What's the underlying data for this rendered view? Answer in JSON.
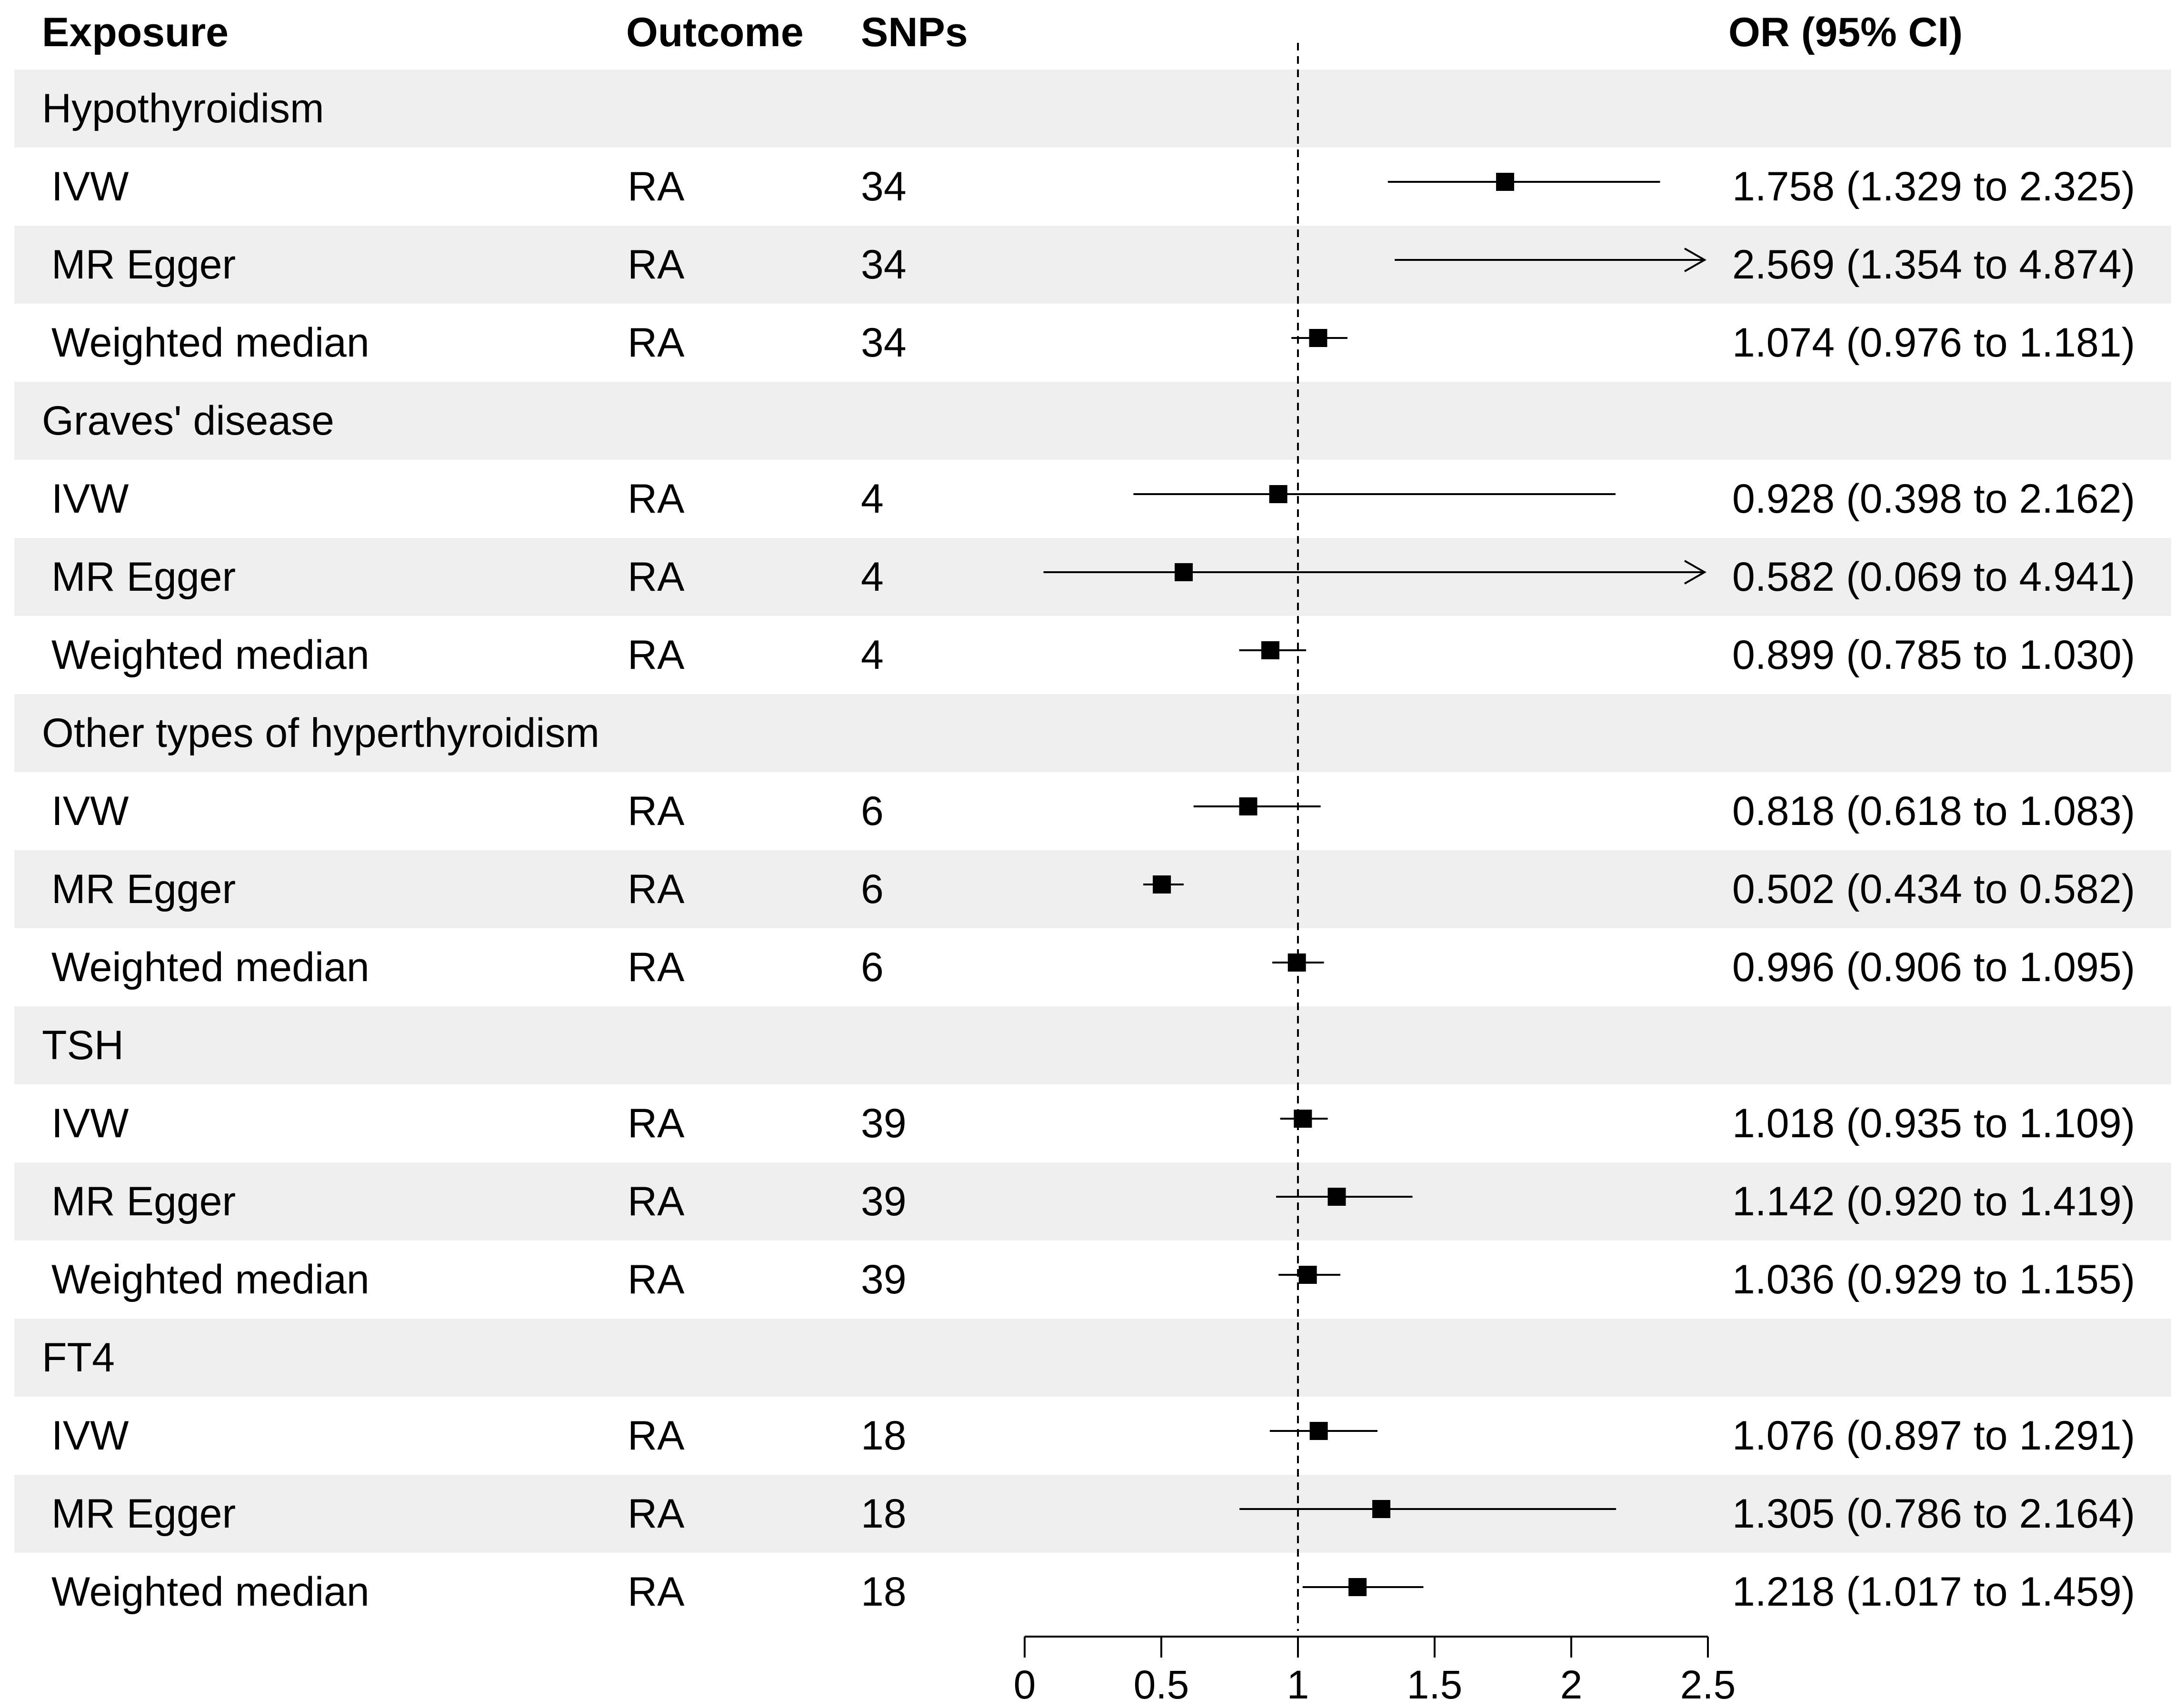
{
  "headers": {
    "exposure": "Exposure",
    "outcome": "Outcome",
    "snps": "SNPs",
    "or": "OR (95% CI)"
  },
  "chart_data": {
    "type": "forest",
    "title": "",
    "xlabel": "",
    "ylabel": "",
    "xlim": [
      0,
      2.5
    ],
    "xticks": [
      0,
      0.5,
      1,
      1.5,
      2,
      2.5
    ],
    "xtick_labels": [
      "0",
      "0.5",
      "1",
      "1.5",
      "2",
      "2.5"
    ],
    "reference_line": 1,
    "rows": [
      {
        "kind": "group",
        "label": "Hypothyroidism"
      },
      {
        "kind": "method",
        "label": "IVW",
        "outcome": "RA",
        "snps": "34",
        "or": 1.758,
        "lo": 1.329,
        "hi": 2.325,
        "text": "1.758 (1.329 to 2.325)"
      },
      {
        "kind": "method",
        "label": "MR Egger",
        "outcome": "RA",
        "snps": "34",
        "or": 2.569,
        "lo": 1.354,
        "hi": 4.874,
        "text": "2.569 (1.354 to 4.874)"
      },
      {
        "kind": "method",
        "label": "Weighted median",
        "outcome": "RA",
        "snps": "34",
        "or": 1.074,
        "lo": 0.976,
        "hi": 1.181,
        "text": "1.074 (0.976 to 1.181)"
      },
      {
        "kind": "group",
        "label": "Graves' disease"
      },
      {
        "kind": "method",
        "label": "IVW",
        "outcome": "RA",
        "snps": "4",
        "or": 0.928,
        "lo": 0.398,
        "hi": 2.162,
        "text": "0.928 (0.398 to 2.162)"
      },
      {
        "kind": "method",
        "label": "MR Egger",
        "outcome": "RA",
        "snps": "4",
        "or": 0.582,
        "lo": 0.069,
        "hi": 4.941,
        "text": "0.582 (0.069 to 4.941)"
      },
      {
        "kind": "method",
        "label": "Weighted median",
        "outcome": "RA",
        "snps": "4",
        "or": 0.899,
        "lo": 0.785,
        "hi": 1.03,
        "text": "0.899 (0.785 to 1.030)"
      },
      {
        "kind": "group",
        "label": "Other types of hyperthyroidism"
      },
      {
        "kind": "method",
        "label": "IVW",
        "outcome": "RA",
        "snps": "6",
        "or": 0.818,
        "lo": 0.618,
        "hi": 1.083,
        "text": "0.818 (0.618 to 1.083)"
      },
      {
        "kind": "method",
        "label": "MR Egger",
        "outcome": "RA",
        "snps": "6",
        "or": 0.502,
        "lo": 0.434,
        "hi": 0.582,
        "text": "0.502 (0.434 to 0.582)"
      },
      {
        "kind": "method",
        "label": "Weighted median",
        "outcome": "RA",
        "snps": "6",
        "or": 0.996,
        "lo": 0.906,
        "hi": 1.095,
        "text": "0.996 (0.906 to 1.095)"
      },
      {
        "kind": "group",
        "label": "TSH"
      },
      {
        "kind": "method",
        "label": "IVW",
        "outcome": "RA",
        "snps": "39",
        "or": 1.018,
        "lo": 0.935,
        "hi": 1.109,
        "text": "1.018 (0.935 to 1.109)"
      },
      {
        "kind": "method",
        "label": "MR Egger",
        "outcome": "RA",
        "snps": "39",
        "or": 1.142,
        "lo": 0.92,
        "hi": 1.419,
        "text": "1.142 (0.920 to 1.419)"
      },
      {
        "kind": "method",
        "label": "Weighted median",
        "outcome": "RA",
        "snps": "39",
        "or": 1.036,
        "lo": 0.929,
        "hi": 1.155,
        "text": "1.036 (0.929 to 1.155)"
      },
      {
        "kind": "group",
        "label": "FT4"
      },
      {
        "kind": "method",
        "label": "IVW",
        "outcome": "RA",
        "snps": "18",
        "or": 1.076,
        "lo": 0.897,
        "hi": 1.291,
        "text": "1.076 (0.897 to 1.291)"
      },
      {
        "kind": "method",
        "label": "MR Egger",
        "outcome": "RA",
        "snps": "18",
        "or": 1.305,
        "lo": 0.786,
        "hi": 2.164,
        "text": "1.305 (0.786 to 2.164)"
      },
      {
        "kind": "method",
        "label": "Weighted median",
        "outcome": "RA",
        "snps": "18",
        "or": 1.218,
        "lo": 1.017,
        "hi": 1.459,
        "text": "1.218 (1.017 to 1.459)"
      }
    ]
  }
}
